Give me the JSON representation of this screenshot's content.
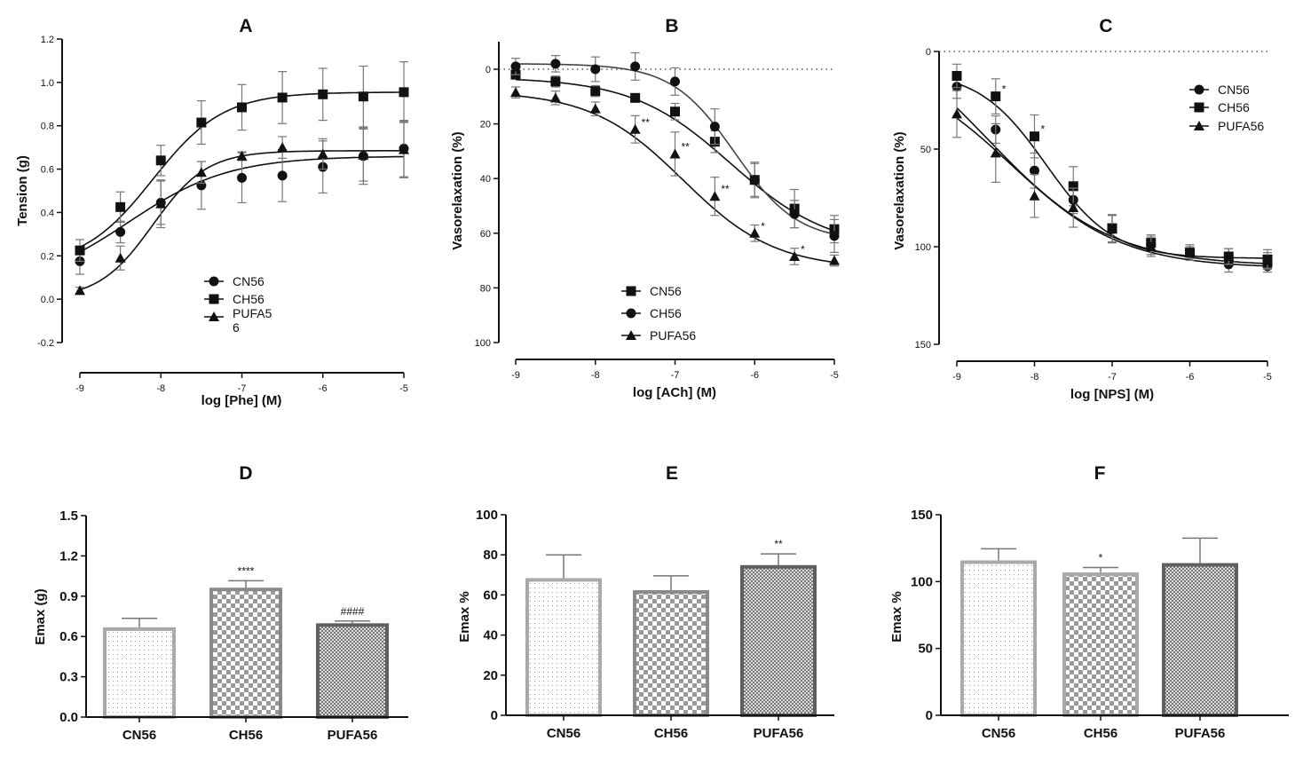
{
  "chart_data": [
    {
      "id": "A",
      "type": "line",
      "title": "A",
      "xlabel": "log [Phe] (M)",
      "ylabel": "Tension (g)",
      "xlim": [
        -9,
        -5
      ],
      "ylim": [
        -0.2,
        1.2
      ],
      "y_reversed": false,
      "xticks": [
        "-9",
        "-8",
        "-7",
        "-6",
        "-5"
      ],
      "yticks": [
        "-0.2",
        "0.0",
        "0.2",
        "0.4",
        "0.6",
        "0.8",
        "1.0",
        "1.2"
      ],
      "legend": "center-bottom",
      "x": [
        -9,
        -8.5,
        -8,
        -7.5,
        -7,
        -6.5,
        -6,
        -5.5,
        -5
      ],
      "series": [
        {
          "name": "CN56",
          "marker": "circle",
          "values": [
            0.175,
            0.31,
            0.445,
            0.525,
            0.56,
            0.57,
            0.61,
            0.66,
            0.695
          ],
          "errors": [
            0.06,
            0.05,
            0.1,
            0.11,
            0.115,
            0.12,
            0.12,
            0.13,
            0.13
          ],
          "fit": {
            "bottom": 0.05,
            "top": 0.66,
            "logEC50": -8.4,
            "hill": 0.7
          },
          "stars": []
        },
        {
          "name": "CH56",
          "marker": "square",
          "values": [
            0.225,
            0.425,
            0.64,
            0.815,
            0.885,
            0.93,
            0.945,
            0.935,
            0.955
          ],
          "errors": [
            0.05,
            0.07,
            0.07,
            0.1,
            0.105,
            0.12,
            0.12,
            0.14,
            0.14
          ],
          "fit": {
            "bottom": 0.15,
            "top": 0.955,
            "logEC50": -8.1,
            "hill": 1.0
          },
          "stars": []
        },
        {
          "name": "PUFA5\n6",
          "marker": "triangle",
          "values": [
            0.04,
            0.19,
            0.44,
            0.585,
            0.66,
            0.7,
            0.67,
            0.665,
            0.69
          ],
          "errors": [
            0.015,
            0.055,
            0.11,
            0.05,
            0.02,
            0.05,
            0.07,
            0.12,
            0.13
          ],
          "fit": {
            "bottom": 0.0,
            "top": 0.685,
            "logEC50": -8.1,
            "hill": 1.3
          },
          "stars": []
        }
      ]
    },
    {
      "id": "B",
      "type": "line",
      "title": "B",
      "xlabel": "log [ACh] (M)",
      "ylabel": "Vasorelaxation (%)",
      "xlim": [
        -9,
        -5
      ],
      "ylim": [
        -10,
        100
      ],
      "y_reversed": true,
      "reference_line": 0,
      "xticks": [
        "-9",
        "-8",
        "-7",
        "-6",
        "-5"
      ],
      "yticks": [
        "0",
        "20",
        "40",
        "60",
        "80",
        "100"
      ],
      "legend": "center-bottom",
      "x": [
        -9,
        -8.5,
        -8,
        -7.5,
        -7,
        -6.5,
        -6,
        -5.5,
        -5
      ],
      "series": [
        {
          "name": "CN56",
          "marker": "square",
          "values": [
            2,
            4.5,
            8,
            10.5,
            15.5,
            26.5,
            40.5,
            51,
            58.5
          ],
          "errors": [
            1,
            2,
            2,
            1,
            3,
            4,
            6,
            7,
            5
          ],
          "fit": {
            "bottom": 3,
            "top": 66,
            "logEC50": -6.3,
            "hill": 0.7
          },
          "stars": []
        },
        {
          "name": "CH56",
          "marker": "circle",
          "values": [
            -1,
            -2,
            0,
            -1,
            4.5,
            21,
            40.5,
            53,
            61
          ],
          "errors": [
            3,
            3,
            4.5,
            5,
            5,
            6.5,
            6.5,
            5,
            6
          ],
          "fit": {
            "bottom": -2,
            "top": 63,
            "logEC50": -6.25,
            "hill": 1.1
          },
          "stars": []
        },
        {
          "name": "PUFA56",
          "marker": "triangle",
          "values": [
            8.5,
            10.5,
            14.5,
            22,
            31,
            46.5,
            60,
            68.5,
            70
          ],
          "errors": [
            2,
            2.5,
            2.5,
            5,
            8,
            7,
            3,
            3,
            2
          ],
          "fit": {
            "bottom": 8,
            "top": 73,
            "logEC50": -6.9,
            "hill": 0.75
          },
          "stars": [
            "",
            "",
            "",
            "**",
            "**",
            "**",
            "*",
            "*",
            ""
          ]
        }
      ]
    },
    {
      "id": "C",
      "type": "line",
      "title": "C",
      "xlabel": "log [NPS] (M)",
      "ylabel": "Vasorelaxation (%)",
      "xlim": [
        -9,
        -5
      ],
      "ylim": [
        0,
        150
      ],
      "y_reversed": true,
      "reference_line": 0,
      "xticks": [
        "-9",
        "-8",
        "-7",
        "-6",
        "-5"
      ],
      "yticks": [
        "0",
        "50",
        "100",
        "150"
      ],
      "legend": "top-right",
      "x": [
        -9,
        -8.5,
        -8,
        -7.5,
        -7,
        -6.5,
        -6,
        -5.5,
        -5
      ],
      "series": [
        {
          "name": "CN56",
          "marker": "circle",
          "values": [
            18,
            40,
            61,
            76,
            91,
            99,
            103,
            109,
            110
          ],
          "errors": [
            6,
            7,
            9,
            7,
            7,
            5,
            3,
            4,
            3
          ],
          "fit": {
            "bottom": 5,
            "top": 111,
            "logEC50": -8.3,
            "hill": 0.6
          },
          "stars": []
        },
        {
          "name": "CH56",
          "marker": "square",
          "values": [
            12.5,
            23,
            43.5,
            69,
            90.5,
            98,
            103,
            105,
            106.5
          ],
          "errors": [
            6,
            9,
            11,
            10,
            7,
            4,
            4,
            4,
            5
          ],
          "fit": {
            "bottom": 10,
            "top": 106,
            "logEC50": -7.85,
            "hill": 1.0
          },
          "stars": [
            "",
            "*",
            "*",
            "",
            "",
            "",
            "",
            "",
            ""
          ]
        },
        {
          "name": "PUFA56",
          "marker": "triangle",
          "values": [
            32,
            52,
            74,
            80,
            91,
            100,
            103,
            105,
            107
          ],
          "errors": [
            12,
            15,
            11,
            10,
            7,
            5,
            3,
            4,
            4
          ],
          "fit": {
            "bottom": -20,
            "top": 110,
            "logEC50": -8.6,
            "hill": 0.55
          },
          "stars": []
        }
      ]
    },
    {
      "id": "D",
      "type": "bar",
      "title": "D",
      "xlabel": "",
      "ylabel": "Emax (g)",
      "ylim": [
        0,
        1.5
      ],
      "yticks": [
        "0.0",
        "0.3",
        "0.6",
        "0.9",
        "1.2",
        "1.5"
      ],
      "categories": [
        "CN56",
        "CH56",
        "PUFA56"
      ],
      "values": [
        0.655,
        0.95,
        0.685
      ],
      "errors": [
        0.08,
        0.065,
        0.03
      ],
      "annotations": [
        "",
        "****",
        "####"
      ]
    },
    {
      "id": "E",
      "type": "bar",
      "title": "E",
      "xlabel": "",
      "ylabel": "Emax %",
      "ylim": [
        0,
        100
      ],
      "yticks": [
        "0",
        "20",
        "40",
        "60",
        "80",
        "100"
      ],
      "categories": [
        "CN56",
        "CH56",
        "PUFA56"
      ],
      "values": [
        67.5,
        61.5,
        74
      ],
      "errors": [
        12.5,
        8,
        6.5
      ],
      "annotations": [
        "",
        "",
        "**"
      ]
    },
    {
      "id": "F",
      "type": "bar",
      "title": "F",
      "xlabel": "",
      "ylabel": "Emax %",
      "ylim": [
        0,
        150
      ],
      "yticks": [
        "0",
        "50",
        "100",
        "150"
      ],
      "categories": [
        "CN56",
        "CH56",
        "PUFA56"
      ],
      "values": [
        114.5,
        105.5,
        112.5
      ],
      "errors": [
        10,
        5,
        20
      ],
      "annotations": [
        "",
        "*",
        ""
      ]
    }
  ],
  "colors": {
    "ink": "#111111",
    "error_bar": "#777777",
    "bar_light": "#a9a9a9",
    "bar_mid": "#8a8a8a",
    "bar_dark": "#5f5f5f"
  }
}
